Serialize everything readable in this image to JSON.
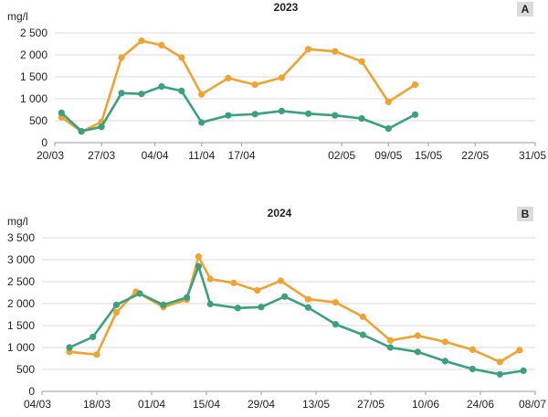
{
  "colors": {
    "series_a": "#f0a330",
    "series_b": "#3aa17e",
    "grid": "#d9d9d9",
    "badge": "#dcdcdc"
  },
  "chart_data": [
    {
      "type": "line",
      "title": "2023",
      "panel_letter": "A",
      "ylabel": "mg/l",
      "xlabel": "",
      "ylim": [
        0,
        2500
      ],
      "y_ticks": [
        0,
        500,
        1000,
        1500,
        2000,
        2500
      ],
      "y_tick_labels": [
        "0",
        "500",
        "1 000",
        "1 500",
        "2 000",
        "2 500"
      ],
      "xlim": [
        "2023-03-20",
        "2023-05-31"
      ],
      "x_ticks": [
        "2023-03-20",
        "2023-03-27",
        "2023-04-04",
        "2023-04-11",
        "2023-04-17",
        "2023-05-02",
        "2023-05-09",
        "2023-05-15",
        "2023-05-22",
        "2023-05-31"
      ],
      "x_tick_labels": [
        "20/03",
        "27/03",
        "04/04",
        "11/04",
        "17/04",
        "02/05",
        "09/05",
        "15/05",
        "22/05",
        "31/05"
      ],
      "grid": true,
      "legend": "none",
      "series": [
        {
          "color_key": "series_a",
          "points": [
            [
              "2023-03-21",
              580
            ],
            [
              "2023-03-24",
              250
            ],
            [
              "2023-03-27",
              470
            ],
            [
              "2023-03-30",
              1940
            ],
            [
              "2023-04-02",
              2320
            ],
            [
              "2023-04-05",
              2220
            ],
            [
              "2023-04-08",
              1940
            ],
            [
              "2023-04-11",
              1100
            ],
            [
              "2023-04-15",
              1470
            ],
            [
              "2023-04-19",
              1320
            ],
            [
              "2023-04-23",
              1480
            ],
            [
              "2023-04-27",
              2130
            ],
            [
              "2023-05-01",
              2080
            ],
            [
              "2023-05-05",
              1850
            ],
            [
              "2023-05-09",
              930
            ],
            [
              "2023-05-13",
              1320
            ]
          ]
        },
        {
          "color_key": "series_b",
          "points": [
            [
              "2023-03-21",
              680
            ],
            [
              "2023-03-24",
              260
            ],
            [
              "2023-03-27",
              360
            ],
            [
              "2023-03-30",
              1130
            ],
            [
              "2023-04-02",
              1110
            ],
            [
              "2023-04-05",
              1280
            ],
            [
              "2023-04-08",
              1180
            ],
            [
              "2023-04-11",
              460
            ],
            [
              "2023-04-15",
              620
            ],
            [
              "2023-04-19",
              650
            ],
            [
              "2023-04-23",
              720
            ],
            [
              "2023-04-27",
              660
            ],
            [
              "2023-05-01",
              620
            ],
            [
              "2023-05-05",
              550
            ],
            [
              "2023-05-09",
              320
            ],
            [
              "2023-05-13",
              640
            ]
          ]
        }
      ]
    },
    {
      "type": "line",
      "title": "2024",
      "panel_letter": "B",
      "ylabel": "mg/l",
      "xlabel": "",
      "ylim": [
        0,
        3500
      ],
      "y_ticks": [
        0,
        500,
        1000,
        1500,
        2000,
        2500,
        3000,
        3500
      ],
      "y_tick_labels": [
        "0",
        "500",
        "1 000",
        "1 500",
        "2 000",
        "2 500",
        "3 000",
        "3 500"
      ],
      "xlim": [
        "2024-03-04",
        "2024-07-08"
      ],
      "x_ticks": [
        "2024-03-04",
        "2024-03-18",
        "2024-04-01",
        "2024-04-15",
        "2024-04-29",
        "2024-05-13",
        "2024-05-27",
        "2024-06-10",
        "2024-06-24",
        "2024-07-08"
      ],
      "x_tick_labels": [
        "04/03",
        "18/03",
        "01/04",
        "15/04",
        "29/04",
        "13/05",
        "27/05",
        "10/06",
        "24/06",
        "08/07"
      ],
      "grid": true,
      "legend": "none",
      "series": [
        {
          "color_key": "series_a",
          "points": [
            [
              "2024-03-11",
              900
            ],
            [
              "2024-03-18",
              840
            ],
            [
              "2024-03-23",
              1800
            ],
            [
              "2024-03-28",
              2270
            ],
            [
              "2024-04-04",
              1920
            ],
            [
              "2024-04-10",
              2090
            ],
            [
              "2024-04-13",
              3070
            ],
            [
              "2024-04-16",
              2560
            ],
            [
              "2024-04-22",
              2470
            ],
            [
              "2024-04-28",
              2300
            ],
            [
              "2024-05-04",
              2520
            ],
            [
              "2024-05-11",
              2100
            ],
            [
              "2024-05-18",
              2030
            ],
            [
              "2024-05-25",
              1700
            ],
            [
              "2024-06-01",
              1160
            ],
            [
              "2024-06-08",
              1270
            ],
            [
              "2024-06-15",
              1130
            ],
            [
              "2024-06-22",
              950
            ],
            [
              "2024-06-29",
              670
            ],
            [
              "2024-07-04",
              940
            ]
          ]
        },
        {
          "color_key": "series_b",
          "points": [
            [
              "2024-03-11",
              1000
            ],
            [
              "2024-03-17",
              1240
            ],
            [
              "2024-03-23",
              1970
            ],
            [
              "2024-03-29",
              2230
            ],
            [
              "2024-04-04",
              1970
            ],
            [
              "2024-04-10",
              2140
            ],
            [
              "2024-04-13",
              2850
            ],
            [
              "2024-04-16",
              1990
            ],
            [
              "2024-04-23",
              1900
            ],
            [
              "2024-04-29",
              1920
            ],
            [
              "2024-05-05",
              2160
            ],
            [
              "2024-05-11",
              1910
            ],
            [
              "2024-05-18",
              1530
            ],
            [
              "2024-05-25",
              1290
            ],
            [
              "2024-06-01",
              1000
            ],
            [
              "2024-06-08",
              900
            ],
            [
              "2024-06-15",
              690
            ],
            [
              "2024-06-22",
              510
            ],
            [
              "2024-06-29",
              390
            ],
            [
              "2024-07-05",
              470
            ]
          ]
        }
      ]
    }
  ]
}
